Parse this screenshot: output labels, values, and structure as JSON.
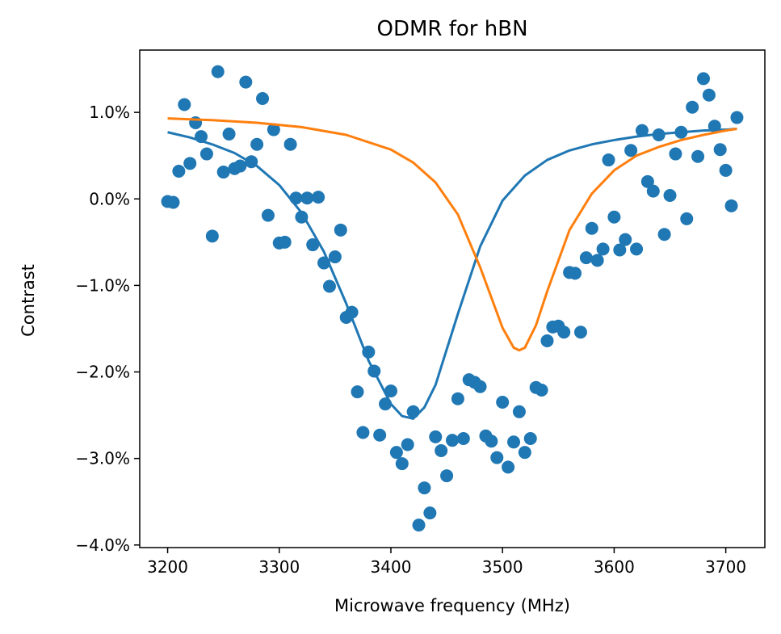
{
  "chart_data": {
    "type": "scatter",
    "title": "ODMR for hBN",
    "xlabel": "Microwave frequency (MHz)",
    "ylabel": "Contrast",
    "xlim": [
      3175,
      3735
    ],
    "ylim": [
      -4.03,
      1.72
    ],
    "grid": false,
    "x_ticks": [
      3200,
      3300,
      3400,
      3500,
      3600,
      3700
    ],
    "x_tick_labels": [
      "3200",
      "3300",
      "3400",
      "3500",
      "3600",
      "3700"
    ],
    "y_ticks": [
      1.0,
      0.0,
      -1.0,
      -2.0,
      -3.0,
      -4.0
    ],
    "y_tick_labels": [
      "1.0%",
      "0.0%",
      "−1.0%",
      "−2.0%",
      "−3.0%",
      "−4.0%"
    ],
    "colors": {
      "data": "#1f77b4",
      "fit2": "#ff7f0e"
    },
    "series": [
      {
        "kind": "scatter",
        "x": [
          3200,
          3205,
          3210,
          3215,
          3220,
          3225,
          3230,
          3235,
          3240,
          3245,
          3250,
          3255,
          3260,
          3265,
          3270,
          3275,
          3280,
          3285,
          3290,
          3295,
          3300,
          3305,
          3310,
          3315,
          3320,
          3325,
          3330,
          3335,
          3340,
          3345,
          3350,
          3355,
          3360,
          3365,
          3370,
          3375,
          3380,
          3385,
          3390,
          3395,
          3400,
          3405,
          3410,
          3415,
          3420,
          3425,
          3430,
          3435,
          3440,
          3445,
          3450,
          3455,
          3460,
          3465,
          3470,
          3475,
          3480,
          3485,
          3490,
          3495,
          3500,
          3505,
          3510,
          3515,
          3520,
          3525,
          3530,
          3535,
          3540,
          3545,
          3550,
          3555,
          3560,
          3565,
          3570,
          3575,
          3580,
          3585,
          3590,
          3595,
          3600,
          3605,
          3610,
          3615,
          3620,
          3625,
          3630,
          3635,
          3640,
          3645,
          3650,
          3655,
          3660,
          3665,
          3670,
          3675,
          3680,
          3685,
          3690,
          3695,
          3700,
          3705,
          3710
        ],
        "y": [
          -0.03,
          -0.04,
          0.32,
          1.09,
          0.41,
          0.88,
          0.72,
          0.52,
          -0.43,
          1.47,
          0.31,
          0.75,
          0.35,
          0.38,
          1.35,
          0.43,
          0.63,
          1.16,
          -0.19,
          0.8,
          -0.51,
          -0.5,
          0.63,
          0.01,
          -0.21,
          0.01,
          -0.53,
          0.02,
          -0.74,
          -1.01,
          -0.67,
          -0.36,
          -1.37,
          -1.31,
          -2.23,
          -2.7,
          -1.77,
          -1.99,
          -2.73,
          -2.37,
          -2.22,
          -2.93,
          -3.06,
          -2.84,
          -2.46,
          -3.77,
          -3.34,
          -3.63,
          -2.75,
          -2.91,
          -3.2,
          -2.79,
          -2.31,
          -2.77,
          -2.09,
          -2.12,
          -2.17,
          -2.74,
          -2.8,
          -2.99,
          -2.35,
          -3.1,
          -2.81,
          -2.46,
          -2.93,
          -2.77,
          -2.18,
          -2.21,
          -1.64,
          -1.48,
          -1.47,
          -1.54,
          -0.85,
          -0.86,
          -1.54,
          -0.68,
          -0.34,
          -0.71,
          -0.58,
          0.45,
          -0.21,
          -0.59,
          -0.47,
          0.56,
          -0.58,
          0.79,
          0.2,
          0.09,
          0.74,
          -0.41,
          0.04,
          0.52,
          0.77,
          -0.23,
          1.06,
          0.49,
          1.39,
          1.2,
          0.84,
          0.57,
          0.33,
          -0.08,
          0.94
        ]
      },
      {
        "kind": "line",
        "color": "#1f77b4",
        "x": [
          3200,
          3220,
          3240,
          3260,
          3280,
          3300,
          3320,
          3340,
          3360,
          3380,
          3400,
          3410,
          3420,
          3430,
          3440,
          3460,
          3480,
          3500,
          3520,
          3540,
          3560,
          3580,
          3600,
          3620,
          3640,
          3660,
          3680,
          3700,
          3710
        ],
        "y": [
          0.77,
          0.71,
          0.63,
          0.53,
          0.38,
          0.16,
          -0.16,
          -0.61,
          -1.21,
          -1.87,
          -2.37,
          -2.51,
          -2.54,
          -2.41,
          -2.15,
          -1.33,
          -0.55,
          -0.02,
          0.27,
          0.45,
          0.56,
          0.63,
          0.68,
          0.72,
          0.75,
          0.77,
          0.79,
          0.8,
          0.81
        ]
      },
      {
        "kind": "line",
        "color": "#ff7f0e",
        "x": [
          3200,
          3240,
          3280,
          3320,
          3360,
          3400,
          3420,
          3440,
          3460,
          3480,
          3500,
          3510,
          3515,
          3520,
          3530,
          3540,
          3560,
          3580,
          3600,
          3620,
          3640,
          3660,
          3680,
          3700,
          3710
        ],
        "y": [
          0.93,
          0.91,
          0.88,
          0.83,
          0.74,
          0.57,
          0.42,
          0.19,
          -0.18,
          -0.79,
          -1.49,
          -1.72,
          -1.75,
          -1.72,
          -1.46,
          -1.07,
          -0.36,
          0.06,
          0.33,
          0.5,
          0.6,
          0.68,
          0.74,
          0.79,
          0.81
        ]
      }
    ]
  }
}
